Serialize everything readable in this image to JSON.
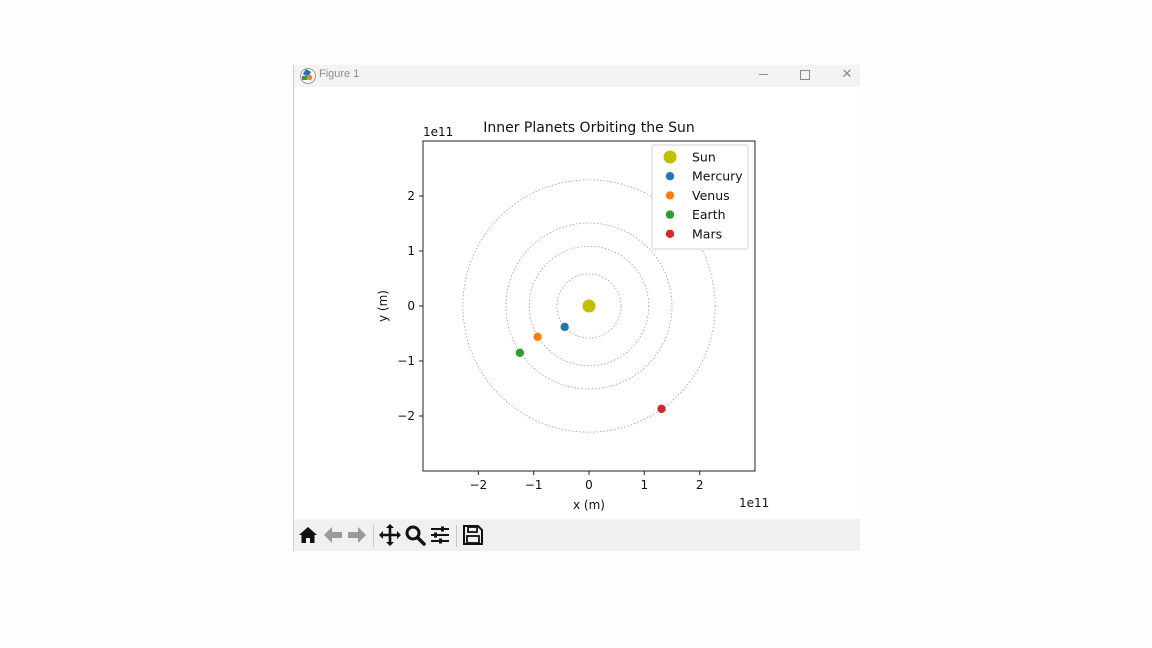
{
  "window": {
    "title": "Figure 1",
    "icon": "matplotlib-icon",
    "controls": [
      "minimize-icon",
      "maximize-icon",
      "close-icon"
    ]
  },
  "toolbar": {
    "buttons": [
      {
        "name": "home-icon"
      },
      {
        "name": "back-arrow-icon"
      },
      {
        "name": "forward-arrow-icon"
      },
      {
        "name": "pan-icon"
      },
      {
        "name": "zoom-icon"
      },
      {
        "name": "configure-subplots-icon"
      },
      {
        "name": "save-icon"
      }
    ]
  },
  "chart_data": {
    "type": "scatter",
    "title": "Inner Planets Orbiting the Sun",
    "xlabel": "x (m)",
    "ylabel": "y (m)",
    "x_offset_text": "1e11",
    "y_offset_text": "1e11",
    "xlim": [
      -300000000000.0,
      300000000000.0
    ],
    "ylim": [
      -300000000000.0,
      300000000000.0
    ],
    "xticks": [
      -2,
      -1,
      0,
      1,
      2
    ],
    "yticks": [
      -2,
      -1,
      0,
      1,
      2
    ],
    "xtick_labels": [
      "−2",
      "−1",
      "0",
      "1",
      "2"
    ],
    "ytick_labels": [
      "−2",
      "−1",
      "0",
      "1",
      "2"
    ],
    "legend_position": "top-right",
    "orbits": [
      {
        "name": "Mercury",
        "radius": 58000000000.0
      },
      {
        "name": "Venus",
        "radius": 108000000000.0
      },
      {
        "name": "Earth",
        "radius": 150000000000.0
      },
      {
        "name": "Mars",
        "radius": 228000000000.0
      }
    ],
    "series": [
      {
        "name": "Sun",
        "x": 0.0,
        "y": 0.0,
        "color": "#bfbf00"
      },
      {
        "name": "Mercury",
        "x": -44000000000.0,
        "y": -38000000000.0,
        "color": "#1f77b4"
      },
      {
        "name": "Venus",
        "x": -93000000000.0,
        "y": -56000000000.0,
        "color": "#ff7f0e"
      },
      {
        "name": "Earth",
        "x": -125000000000.0,
        "y": -85000000000.0,
        "color": "#2ca02c"
      },
      {
        "name": "Mars",
        "x": 131000000000.0,
        "y": -187000000000.0,
        "color": "#d62728"
      }
    ]
  }
}
